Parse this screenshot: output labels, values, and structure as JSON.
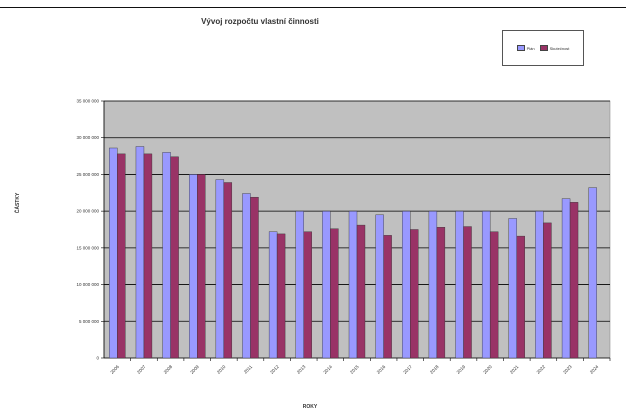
{
  "chart_data": {
    "type": "bar",
    "title": "Vývoj rozpočtu vlastní činnosti",
    "xlabel": "ROKY",
    "ylabel": "ČÁSTKY",
    "categories": [
      "2006",
      "2007",
      "2008",
      "2009",
      "2010",
      "2011",
      "2012",
      "2013",
      "2014",
      "2015",
      "2016",
      "2017",
      "2018",
      "2019",
      "2020",
      "2021",
      "2022",
      "2023",
      "2024"
    ],
    "series": [
      {
        "name": "Plán",
        "color": "#9999ff",
        "values": [
          28600000,
          28800000,
          28000000,
          25000000,
          24300000,
          22400000,
          17200000,
          20000000,
          20000000,
          20000000,
          19500000,
          20000000,
          20000000,
          20000000,
          20000000,
          19000000,
          20000000,
          21700000,
          23200000
        ]
      },
      {
        "name": "Skutečnost",
        "color": "#993366",
        "values": [
          27800000,
          27800000,
          27400000,
          25000000,
          23900000,
          21900000,
          16900000,
          17200000,
          17600000,
          18100000,
          16700000,
          17500000,
          17800000,
          17900000,
          17200000,
          16600000,
          18400000,
          21200000,
          null
        ]
      }
    ],
    "yticks": [
      "0",
      "5 000 000",
      "10 000 000",
      "15 000 000",
      "20 000 000",
      "25 000 000",
      "30 000 000",
      "35 000 000"
    ],
    "ylim": [
      0,
      35000000
    ],
    "grid": true,
    "legend_position": "top-right",
    "plot_background": "#c0c0c0"
  }
}
